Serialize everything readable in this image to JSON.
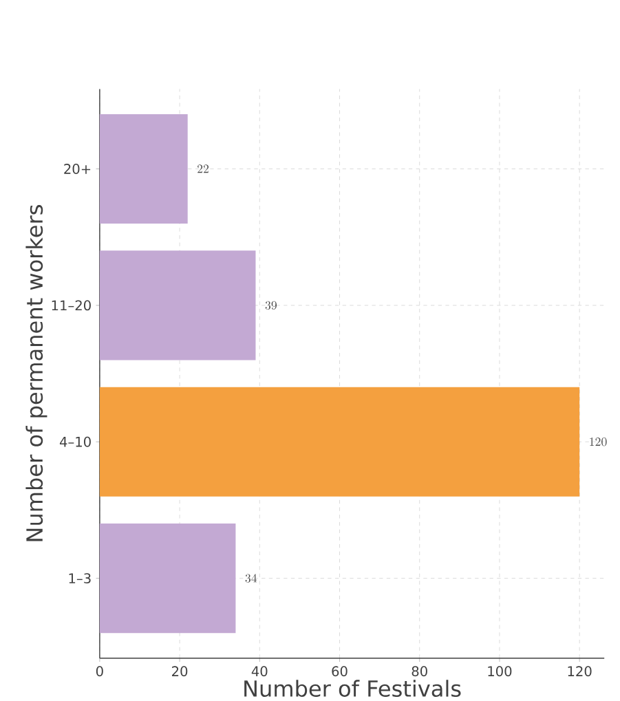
{
  "chart_data": {
    "type": "bar",
    "orientation": "horizontal",
    "categories": [
      "20+",
      "11–20",
      "4–10",
      "1–3"
    ],
    "values": [
      22,
      39,
      120,
      34
    ],
    "colors": [
      "#c3a9d3",
      "#c3a9d3",
      "#f4a03f",
      "#c3a9d3"
    ],
    "xlabel": "Number of Festivals",
    "ylabel": "Number of permanent workers",
    "xlim": [
      0,
      126.2
    ],
    "xticks": [
      0,
      20,
      40,
      60,
      80,
      100,
      120
    ],
    "grid": true,
    "data_labels": true
  }
}
